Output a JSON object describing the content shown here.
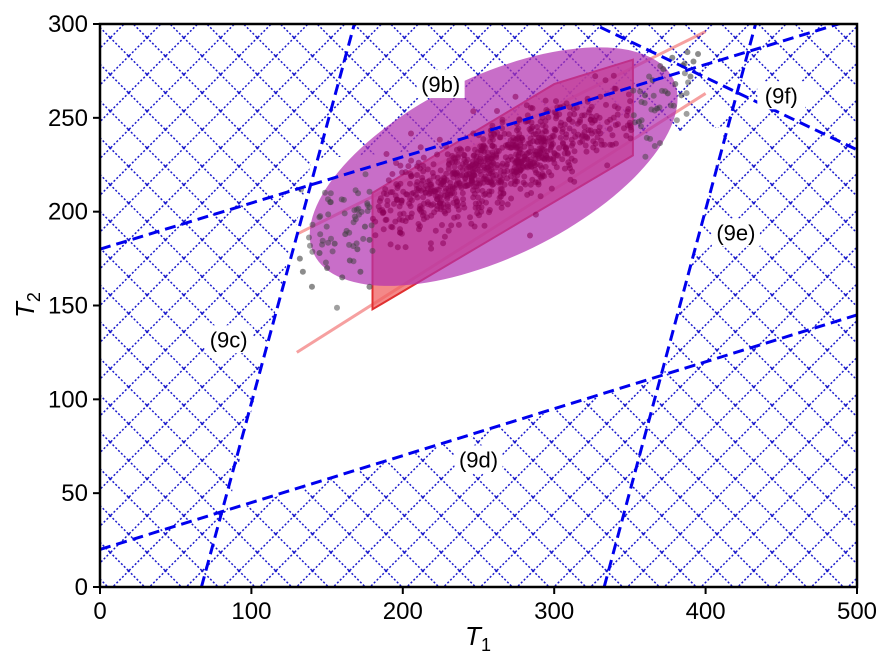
{
  "chart_data": {
    "type": "scatter",
    "title": "",
    "xlabel": {
      "main": "T",
      "sub": "1"
    },
    "ylabel": {
      "main": "T",
      "sub": "2"
    },
    "xlim": [
      0,
      500
    ],
    "ylim": [
      0,
      300
    ],
    "xticks": [
      "0",
      "100",
      "200",
      "300",
      "400",
      "500"
    ],
    "yticks": [
      "0",
      "50",
      "100",
      "150",
      "200",
      "250",
      "300"
    ],
    "grid": false,
    "hatch_color": "#1a1acc",
    "constraint_color": "#0000ee",
    "constraints": [
      {
        "label": "(9b)",
        "points": [
          [
            0,
            180
          ],
          [
            500,
            303
          ]
        ],
        "label_at": [
          225,
          268
        ]
      },
      {
        "label": "(9c)",
        "points": [
          [
            67,
            0
          ],
          [
            168,
            300
          ]
        ],
        "label_at": [
          85,
          132
        ]
      },
      {
        "label": "(9d)",
        "points": [
          [
            0,
            20
          ],
          [
            500,
            145
          ]
        ],
        "label_at": [
          250,
          68
        ]
      },
      {
        "label": "(9e)",
        "points": [
          [
            333,
            0
          ],
          [
            433,
            300
          ]
        ],
        "label_at": [
          420,
          189
        ]
      },
      {
        "label": "(9f)",
        "points": [
          [
            300,
            310
          ],
          [
            500,
            233
          ]
        ],
        "label_at": [
          450,
          262
        ]
      }
    ],
    "feasible_region": [
      [
        84,
        40
      ],
      [
        372,
        112
      ],
      [
        413,
        245
      ],
      [
        140,
        228
      ]
    ],
    "red_region": {
      "color": "#f06060",
      "outer_lines": [
        {
          "points": [
            [
              130,
              188
            ],
            [
              400,
              296
            ]
          ]
        },
        {
          "points": [
            [
              130,
              125
            ],
            [
              400,
              263
            ]
          ]
        }
      ],
      "polygon": [
        [
          180,
          148
        ],
        [
          180,
          210
        ],
        [
          300,
          268
        ],
        [
          352,
          281
        ],
        [
          352,
          230
        ]
      ]
    },
    "purple_ellipse": {
      "color": "#b030b0",
      "center": [
        260,
        224
      ],
      "rx": 132,
      "ry": 30,
      "angle": 26
    },
    "scatter_colors": {
      "outer": "#404040",
      "inner": "#8b0057"
    },
    "scatter_clusters": [
      {
        "x": [
          [
            132,
            175
          ],
          [
            134,
            168
          ],
          [
            140,
            160
          ],
          [
            145,
            178
          ],
          [
            150,
            170
          ],
          [
            155,
            183
          ],
          [
            160,
            165
          ],
          [
            162,
            188
          ],
          [
            165,
            174
          ],
          [
            170,
            180
          ],
          [
            172,
            168
          ],
          [
            175,
            192
          ],
          [
            178,
            160
          ],
          [
            178,
            185
          ]
        ]
      },
      {
        "x": [
          [
            356,
            248
          ],
          [
            360,
            262
          ],
          [
            365,
            270
          ],
          [
            368,
            255
          ],
          [
            372,
            276
          ],
          [
            375,
            263
          ],
          [
            378,
            282
          ],
          [
            380,
            268
          ],
          [
            385,
            278
          ],
          [
            388,
            285
          ],
          [
            390,
            272
          ],
          [
            392,
            280
          ],
          [
            395,
            284
          ],
          [
            384,
            262
          ]
        ]
      }
    ]
  }
}
